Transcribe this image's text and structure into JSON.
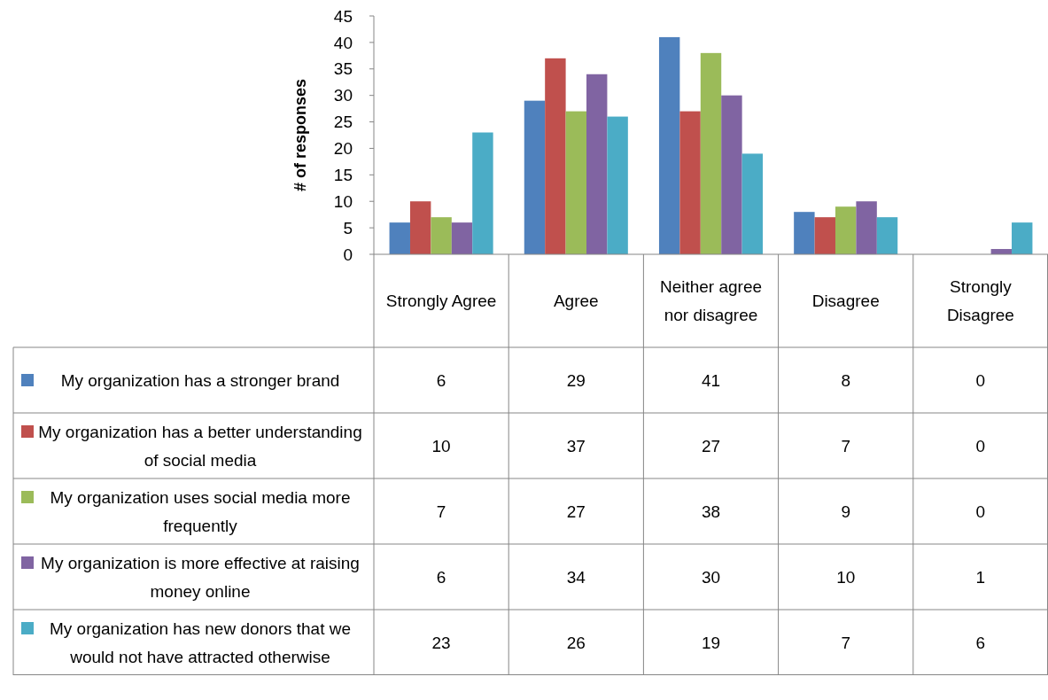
{
  "chart_data": {
    "type": "bar",
    "ylabel": "# of responses",
    "categories": [
      "Strongly Agree",
      "Agree",
      "Neither agree nor disagree",
      "Disagree",
      "Strongly Disagree"
    ],
    "series": [
      {
        "name": "My organization has a stronger brand",
        "color": "#4f81bd",
        "values": [
          6,
          29,
          41,
          8,
          0
        ]
      },
      {
        "name": "My organization has a better understanding of social media",
        "color": "#c0504d",
        "values": [
          10,
          37,
          27,
          7,
          0
        ]
      },
      {
        "name": "My organization uses social media more frequently",
        "color": "#9bbb59",
        "values": [
          7,
          27,
          38,
          9,
          0
        ]
      },
      {
        "name": "My organization is more effective at raising money online",
        "color": "#8064a2",
        "values": [
          6,
          34,
          30,
          10,
          1
        ]
      },
      {
        "name": "My organization has new donors that we would not have attracted otherwise",
        "color": "#4bacc6",
        "values": [
          23,
          26,
          19,
          7,
          6
        ]
      }
    ],
    "ylim": [
      0,
      45
    ],
    "yticks": [
      0,
      5,
      10,
      15,
      20,
      25,
      30,
      35,
      40,
      45
    ],
    "data_labels": true,
    "legend": "bottom",
    "grid": false
  }
}
